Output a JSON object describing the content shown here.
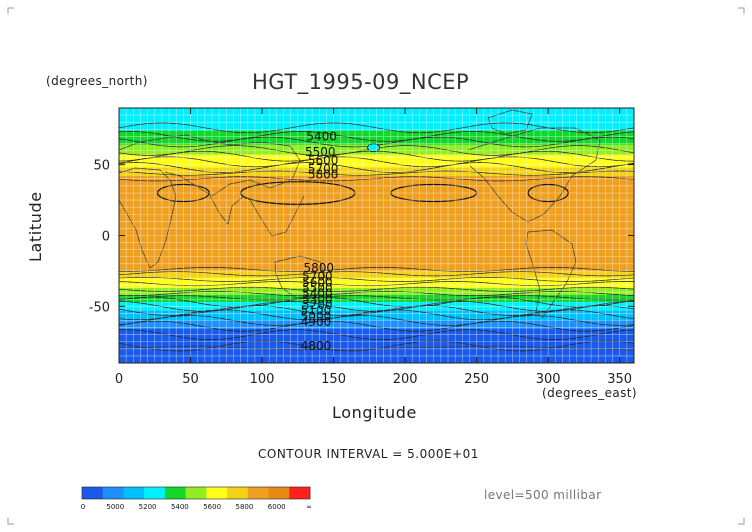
{
  "chart_data": {
    "type": "heatmap",
    "title": "HGT_1995-09_NCEP",
    "ylabel": "Latitude",
    "xlabel": "Longitude",
    "y_units": "(degrees_north)",
    "x_units": "(degrees_east)",
    "xlim": [
      0,
      360
    ],
    "ylim": [
      -90,
      90
    ],
    "x_ticks": [
      0,
      50,
      100,
      150,
      200,
      250,
      300,
      350
    ],
    "y_ticks": [
      -50,
      0,
      50
    ],
    "grid": true,
    "contour_interval_text": "CONTOUR INTERVAL = 5.000E+01",
    "level_text": "level=500 millibar",
    "contour_labels": [
      "5400",
      "5500",
      "5600",
      "5700",
      "5800",
      "5800",
      "5700",
      "5600",
      "5500",
      "5400",
      "5300",
      "5200",
      "5100",
      "5000",
      "4900",
      "4800"
    ],
    "colorbar": {
      "labels": [
        "0",
        "5000",
        "5200",
        "5400",
        "5600",
        "5800",
        "6000",
        "∞"
      ],
      "colors": [
        "#1a5aea",
        "#1e90ff",
        "#00bfff",
        "#00f0ff",
        "#12d82c",
        "#92ee22",
        "#ffff1a",
        "#f4d21a",
        "#f0a020",
        "#e88a14",
        "#ff2020"
      ]
    },
    "latitude_bands": [
      {
        "lat": 90,
        "color": "#00eeff"
      },
      {
        "lat": 80,
        "color": "#00f0ff"
      },
      {
        "lat": 74,
        "color": "#12d82c"
      },
      {
        "lat": 64,
        "color": "#92ee22"
      },
      {
        "lat": 57,
        "color": "#ffff1a"
      },
      {
        "lat": 48,
        "color": "#f4d21a"
      },
      {
        "lat": 42,
        "color": "#f0a020"
      },
      {
        "lat": -25,
        "color": "#f4d21a"
      },
      {
        "lat": -30,
        "color": "#ffff1a"
      },
      {
        "lat": -37,
        "color": "#92ee22"
      },
      {
        "lat": -42,
        "color": "#12d82c"
      },
      {
        "lat": -47,
        "color": "#00f0ff"
      },
      {
        "lat": -53,
        "color": "#00bfff"
      },
      {
        "lat": -60,
        "color": "#1e90ff"
      },
      {
        "lat": -66,
        "color": "#1a5aea"
      },
      {
        "lat": -90,
        "color": "#1a5aea"
      }
    ]
  }
}
